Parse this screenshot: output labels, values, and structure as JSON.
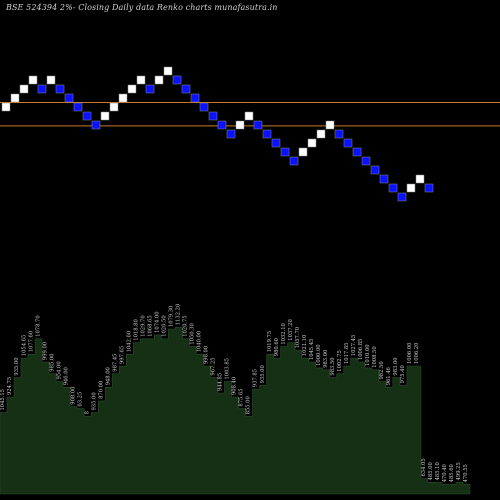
{
  "title": "BSE 524394  2%-  Closing Daily data  Renko  charts munafasutra.in",
  "colors": {
    "background": "#000000",
    "up_brick": "#ffffff",
    "down_brick": "#0a12ff",
    "brick_border": "#888888",
    "reference_line": "#c87a2a",
    "volume_fill": "#163016",
    "volume_edge": "#2a4a2a",
    "label": "#c8c8c8"
  },
  "chart_data": {
    "type": "renko",
    "title": "BSE 524394  2%-  Closing Daily data  Renko  charts munafasutra.in",
    "brick_levels": [
      10,
      11,
      12,
      13,
      12,
      13,
      12,
      11,
      10,
      9,
      8,
      9,
      10,
      11,
      12,
      13,
      12,
      13,
      14,
      13,
      12,
      11,
      10,
      9,
      8,
      7,
      8,
      9,
      8,
      7,
      6,
      5,
      4,
      5,
      6,
      7,
      8,
      7,
      6,
      5,
      4,
      3,
      2,
      1,
      0,
      1,
      2,
      1
    ],
    "brick_direction": [
      "up",
      "up",
      "up",
      "up",
      "down",
      "up",
      "down",
      "down",
      "down",
      "down",
      "down",
      "up",
      "up",
      "up",
      "up",
      "up",
      "down",
      "up",
      "up",
      "down",
      "down",
      "down",
      "down",
      "down",
      "down",
      "down",
      "up",
      "up",
      "down",
      "down",
      "down",
      "down",
      "down",
      "up",
      "up",
      "up",
      "up",
      "down",
      "down",
      "down",
      "down",
      "down",
      "down",
      "down",
      "down",
      "up",
      "up",
      "down"
    ],
    "reference_lines": [
      10.0,
      7.4
    ],
    "volume_labels": [
      "1045.15",
      "924.75",
      "935.00",
      "1054.65",
      "1077.60",
      "1078.70",
      "999.00",
      "985.00",
      "954.00",
      "946.00",
      "908.00",
      "63.25",
      "8",
      "935.00",
      "870.00",
      "948.00",
      "987.45",
      "997.65",
      "1042.60",
      "1018.80",
      "1029.70",
      "1068.65",
      "1074.00",
      "1020.50",
      "1079.30",
      "1132.20",
      "1020.75",
      "1050.30",
      "1040.00",
      "998.00",
      "967.25",
      "944.85",
      "1003.85",
      "908.40",
      "875.65",
      "855.00",
      "937.85",
      "935.00",
      "1019.75",
      "980.60",
      "1032.10",
      "1037.20",
      "1057.70",
      "1021.10",
      "1045.45",
      "1000.00",
      "983.00",
      "983.50",
      "1002.75",
      "1017.85",
      "1027.45",
      "1006.85",
      "1010.00",
      "1008.50",
      "982.50",
      "961.46",
      "983.00",
      "975.40",
      "1006.00",
      "1006.20",
      "634.05",
      "485.00",
      "485.10",
      "470.40",
      "485.60",
      "499.25",
      "470.55"
    ],
    "volume_levels": [
      0.42,
      0.5,
      0.6,
      0.7,
      0.72,
      0.8,
      0.68,
      0.62,
      0.58,
      0.55,
      0.45,
      0.44,
      0.4,
      0.42,
      0.48,
      0.55,
      0.62,
      0.66,
      0.72,
      0.78,
      0.8,
      0.8,
      0.82,
      0.8,
      0.85,
      0.86,
      0.8,
      0.76,
      0.72,
      0.66,
      0.6,
      0.52,
      0.58,
      0.5,
      0.44,
      0.4,
      0.54,
      0.56,
      0.72,
      0.7,
      0.76,
      0.78,
      0.74,
      0.7,
      0.68,
      0.65,
      0.64,
      0.6,
      0.62,
      0.66,
      0.7,
      0.68,
      0.65,
      0.64,
      0.58,
      0.55,
      0.6,
      0.56,
      0.66,
      0.66,
      0.08,
      0.06,
      0.06,
      0.05,
      0.05,
      0.06,
      0.05
    ]
  }
}
